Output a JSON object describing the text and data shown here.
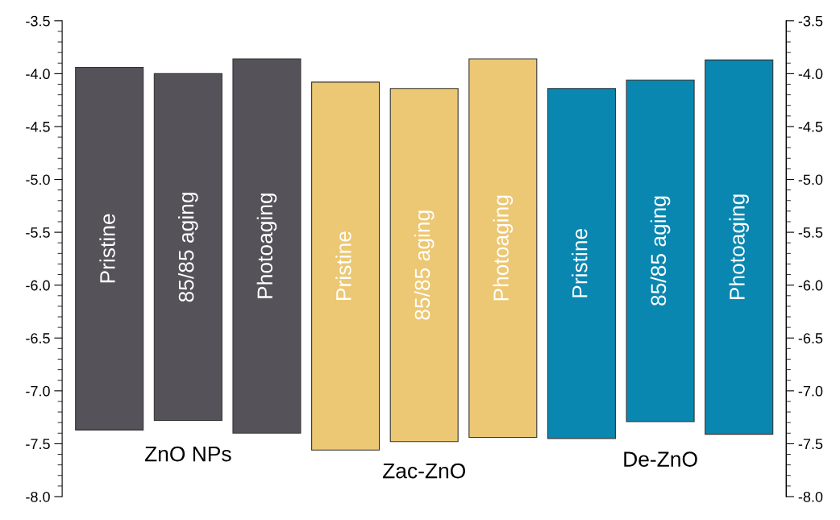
{
  "chart_data": {
    "type": "bar",
    "categories": [
      "Pristine",
      "85/85 aging",
      "Photoaging",
      "Pristine",
      "85/85 aging",
      "Photoaging",
      "Pristine",
      "85/85 aging",
      "Photoaging"
    ],
    "series": [
      {
        "name": "ZnO NPs",
        "color": "#56525a",
        "base": [
          -7.37,
          -7.28,
          -7.4,
          null,
          null,
          null,
          null,
          null,
          null
        ],
        "values": [
          3.43,
          3.28,
          3.54,
          null,
          null,
          null,
          null,
          null,
          null
        ]
      },
      {
        "name": "Zac-ZnO",
        "color": "#ecc874",
        "base": [
          null,
          null,
          null,
          -7.56,
          -7.48,
          -7.44,
          null,
          null,
          null
        ],
        "values": [
          null,
          null,
          null,
          3.48,
          3.34,
          3.58,
          null,
          null,
          null
        ]
      },
      {
        "name": "De-ZnO",
        "color": "#0a87b0",
        "base": [
          null,
          null,
          null,
          null,
          null,
          null,
          -7.45,
          -7.29,
          -7.41
        ],
        "values": [
          null,
          null,
          null,
          null,
          null,
          null,
          3.31,
          3.23,
          3.54
        ]
      }
    ],
    "ylim": [
      -8.0,
      -3.5
    ],
    "yticks": [
      {
        "value": -8,
        "label": "-8.0"
      },
      {
        "value": -7.5,
        "label": "-7.5"
      },
      {
        "value": -7,
        "label": "-7.0"
      },
      {
        "value": -6.5,
        "label": "-6.5"
      },
      {
        "value": -6,
        "label": "-6.0"
      },
      {
        "value": -5.5,
        "label": "-5.5"
      },
      {
        "value": -5,
        "label": "-5.0"
      },
      {
        "value": -4.5,
        "label": "-4.5"
      },
      {
        "value": -4,
        "label": "-4.0"
      },
      {
        "value": -3.5,
        "label": "-3.5"
      }
    ],
    "y2lim": [
      -8.0,
      -3.5
    ],
    "y2ticks": [
      {
        "value": -8,
        "label": "-8.0"
      },
      {
        "value": -7.5,
        "label": "-7.5"
      },
      {
        "value": -7,
        "label": "-7.0"
      },
      {
        "value": -6.5,
        "label": "-6.5"
      },
      {
        "value": -6,
        "label": "-6.0"
      },
      {
        "value": -5.5,
        "label": "-5.5"
      },
      {
        "value": -5,
        "label": "-5.0"
      },
      {
        "value": -4.5,
        "label": "-4.5"
      },
      {
        "value": -4,
        "label": "-4.0"
      },
      {
        "value": -3.5,
        "label": "-3.5"
      }
    ],
    "grid": false,
    "legend": false
  }
}
